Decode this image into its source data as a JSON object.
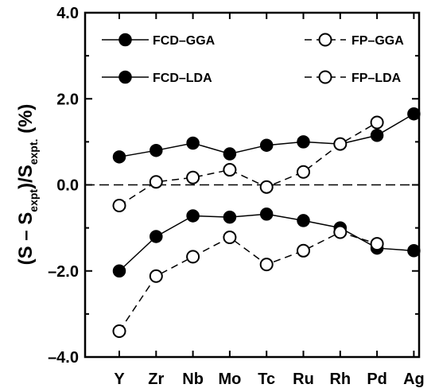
{
  "chart_data": {
    "type": "line",
    "categories": [
      "Y",
      "Zr",
      "Nb",
      "Mo",
      "Tc",
      "Ru",
      "Rh",
      "Pd",
      "Ag"
    ],
    "ylabel": {
      "prefix": "(S – S",
      "sub1": "expt",
      "middle": ")/S",
      "sub2": "expt.",
      "suffix": " (%)"
    },
    "ylim": [
      -4.0,
      4.0
    ],
    "yticks_major": [
      -4.0,
      -2.0,
      0.0,
      2.0,
      4.0
    ],
    "yticks_major_labels": [
      "–4.0",
      "–2.0",
      "0.0",
      "2.0",
      "4.0"
    ],
    "yticks_minor": [
      -3.0,
      -1.0,
      1.0,
      3.0
    ],
    "zero_reference_line": "dashed",
    "grid": false,
    "series": [
      {
        "name": "FCD–GGA",
        "marker": "filled-circle",
        "line": "solid",
        "color": "#000000",
        "values": [
          0.65,
          0.8,
          0.97,
          0.72,
          0.92,
          1.0,
          0.95,
          1.15,
          1.65
        ]
      },
      {
        "name": "FCD–LDA",
        "marker": "filled-circle",
        "line": "solid",
        "color": "#000000",
        "values": [
          -2.0,
          -1.2,
          -0.72,
          -0.75,
          -0.68,
          -0.83,
          -1.0,
          -1.47,
          -1.53
        ]
      },
      {
        "name": "FP–GGA",
        "marker": "open-circle",
        "line": "dashed",
        "color": "#000000",
        "values": [
          -0.48,
          0.07,
          0.17,
          0.35,
          -0.05,
          0.3,
          0.95,
          1.45,
          null
        ]
      },
      {
        "name": "FP–LDA",
        "marker": "open-circle",
        "line": "dashed",
        "color": "#000000",
        "values": [
          -3.4,
          -2.12,
          -1.67,
          -1.22,
          -1.85,
          -1.53,
          -1.1,
          -1.37,
          null
        ]
      }
    ],
    "legend": {
      "placement": "top",
      "entries": [
        {
          "label": "FCD–GGA",
          "series": 0
        },
        {
          "label": "FP–GGA",
          "series": 2
        },
        {
          "label": "FCD–LDA",
          "series": 1
        },
        {
          "label": "FP–LDA",
          "series": 3
        }
      ]
    }
  }
}
